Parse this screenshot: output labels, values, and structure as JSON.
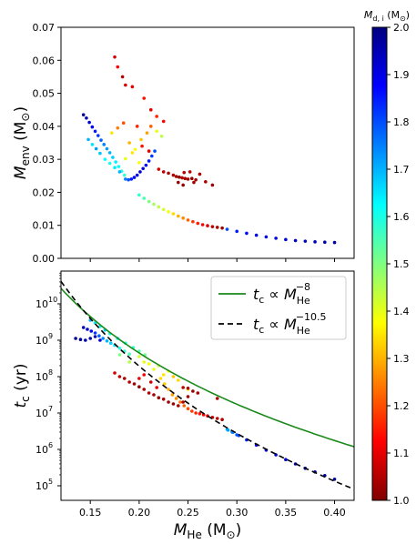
{
  "chart_data": [
    {
      "type": "scatter",
      "title": "",
      "xlabel": "",
      "ylabel": "M_env (M_☉)",
      "ylabel_parts": {
        "main": "M",
        "sub": "env",
        "unit": " (M",
        "unit_sub": "⊙",
        "close": ")"
      },
      "xlim": [
        0.12,
        0.42
      ],
      "ylim": [
        0.0,
        0.07
      ],
      "x_ticks": [
        0.15,
        0.2,
        0.25,
        0.3,
        0.35,
        0.4
      ],
      "y_ticks": [
        0.0,
        0.01,
        0.02,
        0.03,
        0.04,
        0.05,
        0.06,
        0.07
      ],
      "y_tick_labels": [
        "0.00",
        "0.01",
        "0.02",
        "0.03",
        "0.04",
        "0.05",
        "0.06",
        "0.07"
      ],
      "color_by": "M_d,i",
      "points": [
        [
          0.143,
          0.0435,
          1.02
        ],
        [
          0.146,
          0.0425,
          1.05
        ],
        [
          0.149,
          0.0412,
          1.08
        ],
        [
          0.152,
          0.0398,
          1.12
        ],
        [
          0.155,
          0.0385,
          1.15
        ],
        [
          0.158,
          0.0372,
          1.18
        ],
        [
          0.161,
          0.0358,
          1.22
        ],
        [
          0.164,
          0.0345,
          1.25
        ],
        [
          0.167,
          0.0332,
          1.28
        ],
        [
          0.17,
          0.032,
          1.3
        ],
        [
          0.173,
          0.0306,
          1.33
        ],
        [
          0.176,
          0.0292,
          1.36
        ],
        [
          0.179,
          0.0278,
          1.38
        ],
        [
          0.182,
          0.0264,
          1.4
        ],
        [
          0.185,
          0.0252,
          1.42
        ],
        [
          0.148,
          0.036,
          1.3
        ],
        [
          0.152,
          0.0345,
          1.35
        ],
        [
          0.156,
          0.0332,
          1.28
        ],
        [
          0.16,
          0.0318,
          1.32
        ],
        [
          0.165,
          0.03,
          1.38
        ],
        [
          0.17,
          0.0288,
          1.4
        ],
        [
          0.175,
          0.0275,
          1.36
        ],
        [
          0.18,
          0.0262,
          1.3
        ],
        [
          0.186,
          0.024,
          1.25
        ],
        [
          0.189,
          0.0238,
          1.2
        ],
        [
          0.192,
          0.024,
          1.15
        ],
        [
          0.195,
          0.0245,
          1.12
        ],
        [
          0.198,
          0.0252,
          1.1
        ],
        [
          0.201,
          0.0262,
          1.08
        ],
        [
          0.204,
          0.0272,
          1.1
        ],
        [
          0.207,
          0.0282,
          1.12
        ],
        [
          0.21,
          0.0295,
          1.15
        ],
        [
          0.213,
          0.031,
          1.18
        ],
        [
          0.216,
          0.0325,
          1.2
        ],
        [
          0.172,
          0.038,
          1.65
        ],
        [
          0.178,
          0.0395,
          1.75
        ],
        [
          0.184,
          0.041,
          1.8
        ],
        [
          0.19,
          0.035,
          1.7
        ],
        [
          0.196,
          0.033,
          1.62
        ],
        [
          0.202,
          0.036,
          1.68
        ],
        [
          0.208,
          0.038,
          1.72
        ],
        [
          0.212,
          0.04,
          1.78
        ],
        [
          0.218,
          0.0385,
          1.6
        ],
        [
          0.223,
          0.037,
          1.56
        ],
        [
          0.186,
          0.0302,
          1.6
        ],
        [
          0.193,
          0.032,
          1.65
        ],
        [
          0.2,
          0.029,
          1.62
        ],
        [
          0.175,
          0.061,
          1.92
        ],
        [
          0.178,
          0.058,
          1.88
        ],
        [
          0.183,
          0.055,
          1.95
        ],
        [
          0.186,
          0.0525,
          1.92
        ],
        [
          0.193,
          0.052,
          1.9
        ],
        [
          0.205,
          0.0485,
          1.86
        ],
        [
          0.212,
          0.045,
          1.9
        ],
        [
          0.218,
          0.043,
          1.84
        ],
        [
          0.225,
          0.0415,
          1.88
        ],
        [
          0.203,
          0.034,
          1.86
        ],
        [
          0.21,
          0.0325,
          1.9
        ],
        [
          0.198,
          0.04,
          1.84
        ],
        [
          0.22,
          0.027,
          1.92
        ],
        [
          0.225,
          0.0262,
          1.94
        ],
        [
          0.23,
          0.0258,
          1.96
        ],
        [
          0.235,
          0.0252,
          1.95
        ],
        [
          0.238,
          0.0248,
          1.97
        ],
        [
          0.241,
          0.0246,
          1.98
        ],
        [
          0.244,
          0.0244,
          1.95
        ],
        [
          0.247,
          0.0242,
          1.96
        ],
        [
          0.25,
          0.024,
          1.97
        ],
        [
          0.254,
          0.0242,
          1.98
        ],
        [
          0.258,
          0.0238,
          1.96
        ],
        [
          0.246,
          0.026,
          1.95
        ],
        [
          0.252,
          0.0262,
          1.94
        ],
        [
          0.24,
          0.023,
          1.98
        ],
        [
          0.256,
          0.023,
          1.97
        ],
        [
          0.262,
          0.0255,
          1.95
        ],
        [
          0.268,
          0.0232,
          1.96
        ],
        [
          0.275,
          0.0222,
          1.97
        ],
        [
          0.245,
          0.0222,
          1.98
        ],
        [
          0.2,
          0.0192,
          1.42
        ],
        [
          0.205,
          0.0182,
          1.45
        ],
        [
          0.21,
          0.0172,
          1.5
        ],
        [
          0.215,
          0.0164,
          1.53
        ],
        [
          0.22,
          0.0156,
          1.56
        ],
        [
          0.225,
          0.0148,
          1.58
        ],
        [
          0.23,
          0.0141,
          1.62
        ],
        [
          0.235,
          0.0135,
          1.66
        ],
        [
          0.24,
          0.0128,
          1.7
        ],
        [
          0.245,
          0.0122,
          1.74
        ],
        [
          0.25,
          0.0116,
          1.78
        ],
        [
          0.255,
          0.0111,
          1.82
        ],
        [
          0.26,
          0.0106,
          1.85
        ],
        [
          0.265,
          0.0102,
          1.88
        ],
        [
          0.27,
          0.0099,
          1.91
        ],
        [
          0.275,
          0.0096,
          1.94
        ],
        [
          0.28,
          0.0094,
          1.96
        ],
        [
          0.285,
          0.0092,
          1.98
        ],
        [
          0.29,
          0.0088,
          1.2
        ],
        [
          0.3,
          0.0082,
          1.15
        ],
        [
          0.31,
          0.0076,
          1.12
        ],
        [
          0.32,
          0.007,
          1.1
        ],
        [
          0.33,
          0.0065,
          1.1
        ],
        [
          0.34,
          0.0061,
          1.09
        ],
        [
          0.35,
          0.0057,
          1.08
        ],
        [
          0.36,
          0.0054,
          1.07
        ],
        [
          0.37,
          0.0052,
          1.06
        ],
        [
          0.38,
          0.005,
          1.05
        ],
        [
          0.39,
          0.0049,
          1.04
        ],
        [
          0.4,
          0.0048,
          1.03
        ]
      ]
    },
    {
      "type": "scatter",
      "title": "",
      "xlabel": "M_He (M_☉)",
      "xlabel_parts": {
        "main": "M",
        "sub": "He",
        "unit": " (M",
        "unit_sub": "⊙",
        "close": ")"
      },
      "ylabel": "t_c (yr)",
      "ylabel_parts": {
        "main": "t",
        "sub": "c",
        "unit": " (yr)"
      },
      "xlim": [
        0.12,
        0.42
      ],
      "ylim_log10": [
        4.6,
        10.9
      ],
      "yscale": "log",
      "x_ticks": [
        0.15,
        0.2,
        0.25,
        0.3,
        0.35,
        0.4
      ],
      "x_tick_labels": [
        "0.15",
        "0.20",
        "0.25",
        "0.30",
        "0.35",
        "0.40"
      ],
      "y_ticks_log10": [
        5,
        6,
        7,
        8,
        9,
        10
      ],
      "y_tick_labels": [
        "10",
        "10",
        "10",
        "10",
        "10",
        "10"
      ],
      "y_tick_exponents": [
        "5",
        "6",
        "7",
        "8",
        "9",
        "10"
      ],
      "legend_position": "top-right",
      "lines": [
        {
          "name": "t_c ∝ M_He^-8",
          "label_main": "t",
          "label_sub": "c",
          "label_prop": " ∝ ",
          "label_m": "M",
          "label_msub": "He",
          "label_exp": "−8",
          "slope": -8,
          "anchor_x": 0.15,
          "anchor_log10y": 9.65,
          "color": "#1a8a1a",
          "dash": "solid"
        },
        {
          "name": "t_c ∝ M_He^-10.5",
          "label_main": "t",
          "label_sub": "c",
          "label_prop": " ∝ ",
          "label_m": "M",
          "label_msub": "He",
          "label_exp": "−10.5",
          "slope": -10.5,
          "anchor_x": 0.15,
          "anchor_log10y": 9.6,
          "color": "#000000",
          "dash": "dashed"
        }
      ],
      "points": [
        [
          0.143,
          9.35,
          1.05
        ],
        [
          0.147,
          9.3,
          1.08
        ],
        [
          0.151,
          9.25,
          1.12
        ],
        [
          0.155,
          9.2,
          1.18
        ],
        [
          0.159,
          9.12,
          1.22
        ],
        [
          0.163,
          9.05,
          1.26
        ],
        [
          0.167,
          8.98,
          1.3
        ],
        [
          0.171,
          8.92,
          1.33
        ],
        [
          0.175,
          8.86,
          1.36
        ],
        [
          0.18,
          8.78,
          1.4
        ],
        [
          0.185,
          8.7,
          1.42
        ],
        [
          0.19,
          8.62,
          1.45
        ],
        [
          0.15,
          9.55,
          1.3
        ],
        [
          0.155,
          9.48,
          1.35
        ],
        [
          0.16,
          9.38,
          1.38
        ],
        [
          0.165,
          9.28,
          1.32
        ],
        [
          0.17,
          9.18,
          1.4
        ],
        [
          0.178,
          9.05,
          1.36
        ],
        [
          0.186,
          8.92,
          1.4
        ],
        [
          0.194,
          8.8,
          1.42
        ],
        [
          0.2,
          8.7,
          1.45
        ],
        [
          0.206,
          8.6,
          1.48
        ],
        [
          0.135,
          9.05,
          1.02
        ],
        [
          0.14,
          9.02,
          1.03
        ],
        [
          0.145,
          9.0,
          1.05
        ],
        [
          0.15,
          9.05,
          1.04
        ],
        [
          0.155,
          9.1,
          1.06
        ],
        [
          0.16,
          9.0,
          1.08
        ],
        [
          0.18,
          8.6,
          1.5
        ],
        [
          0.19,
          8.4,
          1.55
        ],
        [
          0.2,
          8.55,
          1.58
        ],
        [
          0.205,
          8.4,
          1.6
        ],
        [
          0.21,
          8.35,
          1.62
        ],
        [
          0.215,
          8.2,
          1.6
        ],
        [
          0.22,
          8.3,
          1.58
        ],
        [
          0.225,
          8.05,
          1.65
        ],
        [
          0.23,
          8.15,
          1.62
        ],
        [
          0.235,
          8.0,
          1.68
        ],
        [
          0.24,
          7.9,
          1.66
        ],
        [
          0.245,
          7.7,
          1.65
        ],
        [
          0.25,
          7.65,
          1.64
        ],
        [
          0.222,
          7.95,
          1.66
        ],
        [
          0.226,
          7.8,
          1.68
        ],
        [
          0.23,
          7.65,
          1.7
        ],
        [
          0.234,
          7.5,
          1.72
        ],
        [
          0.238,
          7.4,
          1.74
        ],
        [
          0.242,
          7.3,
          1.76
        ],
        [
          0.246,
          7.2,
          1.78
        ],
        [
          0.25,
          7.12,
          1.8
        ],
        [
          0.254,
          7.05,
          1.82
        ],
        [
          0.258,
          7.0,
          1.84
        ],
        [
          0.262,
          6.98,
          1.86
        ],
        [
          0.266,
          6.95,
          1.88
        ],
        [
          0.27,
          6.92,
          1.9
        ],
        [
          0.275,
          6.88,
          1.92
        ],
        [
          0.28,
          6.85,
          1.94
        ],
        [
          0.285,
          6.82,
          1.96
        ],
        [
          0.175,
          8.1,
          1.92
        ],
        [
          0.18,
          8.0,
          1.94
        ],
        [
          0.185,
          7.95,
          1.96
        ],
        [
          0.19,
          7.85,
          1.95
        ],
        [
          0.195,
          7.8,
          1.97
        ],
        [
          0.2,
          7.72,
          1.98
        ],
        [
          0.205,
          7.65,
          1.96
        ],
        [
          0.21,
          7.55,
          1.95
        ],
        [
          0.215,
          7.5,
          1.97
        ],
        [
          0.22,
          7.42,
          1.98
        ],
        [
          0.225,
          7.38,
          1.96
        ],
        [
          0.23,
          7.3,
          1.97
        ],
        [
          0.235,
          7.25,
          1.98
        ],
        [
          0.24,
          7.2,
          1.96
        ],
        [
          0.245,
          7.3,
          1.95
        ],
        [
          0.25,
          7.45,
          1.97
        ],
        [
          0.255,
          7.6,
          1.98
        ],
        [
          0.26,
          7.55,
          1.96
        ],
        [
          0.245,
          7.7,
          1.94
        ],
        [
          0.25,
          7.68,
          1.96
        ],
        [
          0.28,
          7.4,
          1.95
        ],
        [
          0.2,
          7.95,
          1.9
        ],
        [
          0.205,
          8.05,
          1.88
        ],
        [
          0.212,
          7.85,
          1.92
        ],
        [
          0.218,
          7.7,
          1.9
        ],
        [
          0.29,
          6.55,
          1.3
        ],
        [
          0.295,
          6.48,
          1.28
        ],
        [
          0.3,
          6.4,
          1.2
        ],
        [
          0.31,
          6.26,
          1.15
        ],
        [
          0.32,
          6.12,
          1.12
        ],
        [
          0.33,
          5.98,
          1.1
        ],
        [
          0.34,
          5.85,
          1.09
        ],
        [
          0.35,
          5.72,
          1.08
        ],
        [
          0.36,
          5.6,
          1.07
        ],
        [
          0.37,
          5.48,
          1.06
        ],
        [
          0.38,
          5.38,
          1.05
        ],
        [
          0.39,
          5.28,
          1.04
        ],
        [
          0.4,
          5.18,
          1.03
        ],
        [
          0.291,
          6.53,
          1.28
        ],
        [
          0.296,
          6.47,
          1.25
        ],
        [
          0.302,
          6.38,
          1.2
        ]
      ]
    }
  ],
  "colorbar": {
    "label_main": "M",
    "label_sub": "d, i",
    "label_unit": " (M",
    "label_unit_sub": "⊙",
    "label_close": ")",
    "range": [
      1.0,
      2.0
    ],
    "ticks": [
      "1.0",
      "1.1",
      "1.2",
      "1.3",
      "1.4",
      "1.5",
      "1.6",
      "1.7",
      "1.8",
      "1.9",
      "2.0"
    ],
    "colormap": "jet"
  },
  "colors": {
    "green_line": "#1a8a1a",
    "black_line": "#000000"
  }
}
